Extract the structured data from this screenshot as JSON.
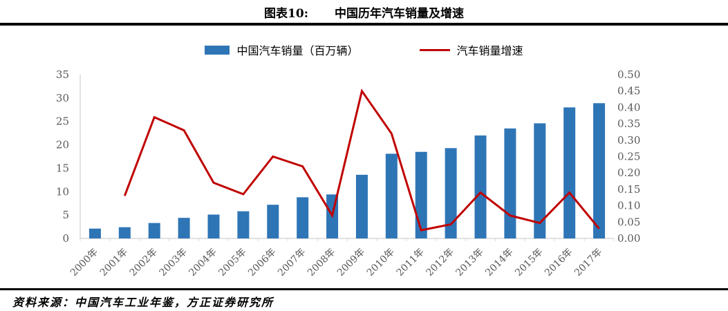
{
  "header": {
    "tag": "图表10:",
    "title": "中国历年汽车销量及增速"
  },
  "legend": [
    {
      "label": "中国汽车销量（百万辆）",
      "type": "bar",
      "color": "#2E75B6"
    },
    {
      "label": "汽车销量增速",
      "type": "line",
      "color": "#C00000"
    }
  ],
  "chart_data": {
    "type": "bar",
    "subtype": "bar+line combo, dual axis",
    "title": "中国历年汽车销量及增速",
    "categories": [
      "2000年",
      "2001年",
      "2002年",
      "2003年",
      "2004年",
      "2005年",
      "2006年",
      "2007年",
      "2008年",
      "2009年",
      "2010年",
      "2011年",
      "2012年",
      "2013年",
      "2014年",
      "2015年",
      "2016年",
      "2017年"
    ],
    "series": [
      {
        "name": "中国汽车销量（百万辆）",
        "type": "bar",
        "axis": "left",
        "color": "#2E75B6",
        "values": [
          2.1,
          2.4,
          3.3,
          4.4,
          5.1,
          5.8,
          7.2,
          8.8,
          9.4,
          13.6,
          18.1,
          18.5,
          19.3,
          22.0,
          23.5,
          24.6,
          28.0,
          28.9
        ]
      },
      {
        "name": "汽车销量增速",
        "type": "line",
        "axis": "right",
        "color": "#C00000",
        "values": [
          null,
          0.13,
          0.37,
          0.33,
          0.17,
          0.135,
          0.25,
          0.22,
          0.07,
          0.45,
          0.32,
          0.025,
          0.043,
          0.14,
          0.07,
          0.047,
          0.14,
          0.03
        ]
      }
    ],
    "left_axis": {
      "min": 0,
      "max": 35,
      "step": 5,
      "ticks": [
        "35",
        "30",
        "25",
        "20",
        "15",
        "10",
        "5",
        "0"
      ]
    },
    "right_axis": {
      "min": 0,
      "max": 0.5,
      "step": 0.05,
      "ticks": [
        "0.50",
        "0.45",
        "0.40",
        "0.35",
        "0.30",
        "0.25",
        "0.20",
        "0.15",
        "0.10",
        "0.05",
        "0.00"
      ]
    },
    "grid": false,
    "legend_position": "top",
    "axis_line_color": "#D9D9D9",
    "tick_label_color": "#595959"
  },
  "footer": {
    "source": "资料来源：中国汽车工业年鉴，方正证券研究所"
  }
}
